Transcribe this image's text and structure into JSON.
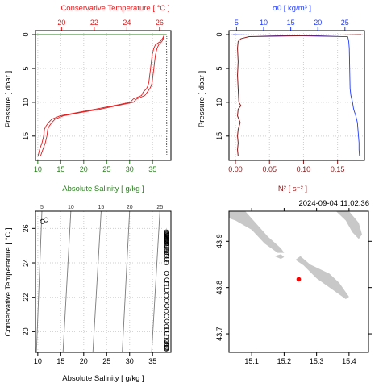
{
  "timestamp": "2024-09-04 11:02:36",
  "colors": {
    "temperature": "#e31a1c",
    "salinity": "#2a7f1e",
    "sigma": "#1f3bff",
    "n2": "#8b1a1a",
    "land": "#c8c8c8",
    "station": "#ff0000",
    "grid": "#cfcfcf"
  },
  "chart_data": [
    {
      "type": "line",
      "name": "ts-profile",
      "xlabel_top": "Conservative Temperature [ °C ]",
      "xlabel_bottom": "Absolute Salinity [ g/kg ]",
      "ylabel": "Pressure [ dbar ]",
      "x_top_ticks": [
        "20",
        "22",
        "24",
        "26"
      ],
      "x_top_lim": [
        18.4,
        26.7
      ],
      "x_bottom_ticks": [
        "10",
        "15",
        "20",
        "25",
        "30",
        "35"
      ],
      "x_bottom_lim": [
        9.5,
        39.0
      ],
      "y_ticks": [
        "0",
        "5",
        "10",
        "15"
      ],
      "y_lim": [
        -0.6,
        18.6
      ],
      "temperature_profile": {
        "pressure": [
          0,
          0.5,
          1,
          1.5,
          2,
          3,
          4,
          5,
          6,
          7,
          7.5,
          8,
          8.5,
          9,
          9.5,
          10,
          10.5,
          11,
          11.5,
          12,
          12.5,
          13,
          13.5,
          14,
          15,
          16,
          17,
          18
        ],
        "values_a": [
          26.3,
          26.25,
          26.15,
          25.95,
          25.85,
          25.75,
          25.7,
          25.65,
          25.6,
          25.55,
          25.5,
          25.4,
          25.25,
          25.1,
          24.6,
          24.4,
          23.4,
          22.4,
          21.2,
          20.1,
          19.6,
          19.4,
          19.25,
          19.15,
          19.1,
          19.0,
          18.85,
          18.7
        ],
        "values_b": [
          26.3,
          26.2,
          26.05,
          25.75,
          25.65,
          25.55,
          25.5,
          25.45,
          25.4,
          25.35,
          25.3,
          25.2,
          25.0,
          24.9,
          24.4,
          24.2,
          23.2,
          22.1,
          21.0,
          19.9,
          19.4,
          19.2,
          19.05,
          18.95,
          18.9,
          18.8,
          18.65,
          18.55
        ]
      },
      "salinity_profile": {
        "pressure": [
          0,
          0.5,
          1,
          2,
          4,
          6,
          8,
          10,
          12,
          14,
          16,
          18
        ],
        "values": [
          38.05,
          38.1,
          38.0,
          38.05,
          38.1,
          38.0,
          38.05,
          38.1,
          38.05,
          38.1,
          38.05,
          38.1
        ]
      }
    },
    {
      "type": "line",
      "name": "density-profile",
      "xlabel_top": "σ0 [ kg/m³ ]",
      "xlabel_bottom": "N² [ s⁻² ]",
      "ylabel": "Pressure [ dbar ]",
      "x_top_ticks": [
        "5",
        "10",
        "15",
        "20",
        "25"
      ],
      "x_top_lim": [
        3.6,
        28.6
      ],
      "x_bottom_ticks": [
        "0.00",
        "0.05",
        "0.10",
        "0.15"
      ],
      "x_bottom_lim": [
        -0.0095,
        0.1895
      ],
      "y_ticks": [
        "0",
        "5",
        "10",
        "15"
      ],
      "y_lim": [
        -0.6,
        18.6
      ],
      "sigma_profile": {
        "pressure": [
          0,
          0.3,
          0.6,
          1,
          2,
          4,
          6,
          8,
          9,
          10,
          11,
          12,
          13,
          14,
          15,
          16,
          17,
          18
        ],
        "values": [
          4.3,
          25.5,
          25.6,
          25.7,
          25.8,
          25.85,
          25.9,
          25.95,
          26.1,
          26.4,
          26.6,
          27.0,
          27.3,
          27.4,
          27.5,
          27.6,
          27.6,
          27.7
        ]
      },
      "n2_profile": {
        "pressure": [
          0,
          0.3,
          0.6,
          1,
          1.5,
          2,
          4,
          6,
          8,
          10,
          10.5,
          11,
          12,
          13,
          14,
          15,
          16,
          17,
          18
        ],
        "values": [
          0.185,
          0.02,
          0.008,
          0.004,
          0.0035,
          0.003,
          0.004,
          0.003,
          0.004,
          0.005,
          0.008,
          0.004,
          0.003,
          0.007,
          0.004,
          0.003,
          0.004,
          0.003,
          0.004
        ]
      }
    },
    {
      "type": "scatter",
      "name": "ts-diagram",
      "xlabel": "Absolute Salinity [ g/kg ]",
      "ylabel": "Conservative Temperature [ °C ]",
      "x_ticks": [
        "10",
        "15",
        "20",
        "25",
        "30",
        "35"
      ],
      "x_lim": [
        9.5,
        39.0
      ],
      "y_ticks": [
        "20",
        "22",
        "24",
        "26"
      ],
      "y_lim": [
        18.8,
        27.0
      ],
      "isopycnal_labels": [
        "5",
        "10",
        "15",
        "20",
        "25"
      ],
      "isopycnals": [
        {
          "label": "5",
          "s_bottom": 9.7,
          "s_top": 10.9
        },
        {
          "label": "10",
          "s_bottom": 15.5,
          "s_top": 17.2
        },
        {
          "label": "15",
          "s_bottom": 22.0,
          "s_top": 23.8
        },
        {
          "label": "20",
          "s_bottom": 28.4,
          "s_top": 30.0
        },
        {
          "label": "25",
          "s_bottom": 34.8,
          "s_top": 36.6
        }
      ],
      "points": [
        [
          11.0,
          26.4
        ],
        [
          11.8,
          26.5
        ],
        [
          38.0,
          25.8
        ],
        [
          38.1,
          25.75
        ],
        [
          38.0,
          25.7
        ],
        [
          38.05,
          25.65
        ],
        [
          38.1,
          25.6
        ],
        [
          38.0,
          25.55
        ],
        [
          38.05,
          25.5
        ],
        [
          38.1,
          25.45
        ],
        [
          38.0,
          25.4
        ],
        [
          38.05,
          25.35
        ],
        [
          38.1,
          25.3
        ],
        [
          38.0,
          25.25
        ],
        [
          38.05,
          25.2
        ],
        [
          38.1,
          25.15
        ],
        [
          38.0,
          25.1
        ],
        [
          38.05,
          25.0
        ],
        [
          38.1,
          24.9
        ],
        [
          38.0,
          24.8
        ],
        [
          38.05,
          24.7
        ],
        [
          38.1,
          24.6
        ],
        [
          38.0,
          24.5
        ],
        [
          38.05,
          24.4
        ],
        [
          38.1,
          24.2
        ],
        [
          38.0,
          24.0
        ],
        [
          38.05,
          23.4
        ],
        [
          38.1,
          23.0
        ],
        [
          38.0,
          22.8
        ],
        [
          38.05,
          22.6
        ],
        [
          38.1,
          22.4
        ],
        [
          38.0,
          22.1
        ],
        [
          38.05,
          21.8
        ],
        [
          38.1,
          21.5
        ],
        [
          38.0,
          21.2
        ],
        [
          38.05,
          20.9
        ],
        [
          38.1,
          20.6
        ],
        [
          38.0,
          20.3
        ],
        [
          38.05,
          20.1
        ],
        [
          38.1,
          19.9
        ],
        [
          38.0,
          19.7
        ],
        [
          38.05,
          19.5
        ],
        [
          38.1,
          19.4
        ],
        [
          38.0,
          19.3
        ],
        [
          38.05,
          19.2
        ],
        [
          38.1,
          19.1
        ],
        [
          38.0,
          19.0
        ],
        [
          38.05,
          19.05
        ]
      ]
    },
    {
      "type": "map",
      "name": "station-map",
      "x_ticks": [
        "15.1",
        "15.2",
        "15.3",
        "15.4"
      ],
      "x_lim": [
        15.03,
        15.46
      ],
      "y_ticks": [
        "43.7",
        "43.8",
        "43.9"
      ],
      "y_lim": [
        43.66,
        43.965
      ],
      "station": {
        "lon": 15.245,
        "lat": 43.818
      },
      "land": [
        [
          [
            15.03,
            43.965
          ],
          [
            15.08,
            43.965
          ],
          [
            15.15,
            43.91
          ],
          [
            15.19,
            43.885
          ],
          [
            15.2,
            43.875
          ],
          [
            15.18,
            43.875
          ],
          [
            15.14,
            43.895
          ],
          [
            15.1,
            43.925
          ],
          [
            15.05,
            43.945
          ],
          [
            15.03,
            43.95
          ]
        ],
        [
          [
            15.17,
            43.868
          ],
          [
            15.19,
            43.862
          ],
          [
            15.2,
            43.866
          ],
          [
            15.19,
            43.872
          ]
        ],
        [
          [
            15.235,
            43.86
          ],
          [
            15.26,
            43.848
          ],
          [
            15.3,
            43.82
          ],
          [
            15.35,
            43.795
          ],
          [
            15.39,
            43.775
          ],
          [
            15.4,
            43.78
          ],
          [
            15.37,
            43.81
          ],
          [
            15.34,
            43.83
          ],
          [
            15.31,
            43.84
          ],
          [
            15.28,
            43.85
          ],
          [
            15.25,
            43.868
          ]
        ],
        [
          [
            15.36,
            43.965
          ],
          [
            15.4,
            43.965
          ],
          [
            15.43,
            43.94
          ],
          [
            15.44,
            43.915
          ],
          [
            15.43,
            43.905
          ],
          [
            15.41,
            43.92
          ],
          [
            15.39,
            43.945
          ]
        ]
      ]
    }
  ]
}
